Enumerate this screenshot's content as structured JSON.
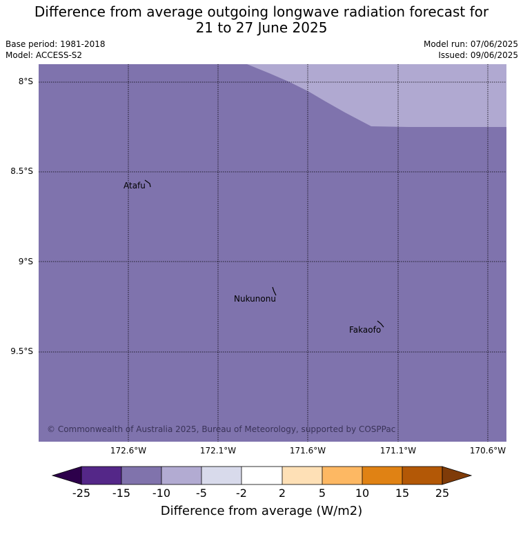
{
  "header": {
    "title_line1": "Difference from average outgoing longwave radiation forecast for",
    "title_line2": "21 to 27 June 2025",
    "base_period": "Base period: 1981-2018",
    "model": "Model: ACCESS-S2",
    "model_run": "Model run: 07/06/2025",
    "issued": "Issued: 09/06/2025"
  },
  "map": {
    "lat_ticks": [
      "8°S",
      "8.5°S",
      "9°S",
      "9.5°S"
    ],
    "lon_ticks": [
      "172.6°W",
      "172.1°W",
      "171.6°W",
      "171.1°W",
      "170.6°W"
    ],
    "places": [
      {
        "name": "Atafu"
      },
      {
        "name": "Nukunonu"
      },
      {
        "name": "Fakaofo"
      }
    ],
    "copyright": "© Commonwealth of Australia 2025, Bureau of Meteorology, supported by COSPPac",
    "colors": {
      "main_fill": "#7f73ad",
      "upper_fill": "#b0a9d1"
    }
  },
  "colorbar": {
    "labels": [
      "-25",
      "-15",
      "-10",
      "-5",
      "-2",
      "2",
      "5",
      "10",
      "15",
      "25"
    ],
    "colors": [
      "#2d004b",
      "#542788",
      "#8073ac",
      "#b2abd2",
      "#d8daeb",
      "#ffffff",
      "#fee0b6",
      "#fdb863",
      "#e08214",
      "#b35806",
      "#7f3b08"
    ],
    "title": "Difference from average (W/m2)"
  }
}
